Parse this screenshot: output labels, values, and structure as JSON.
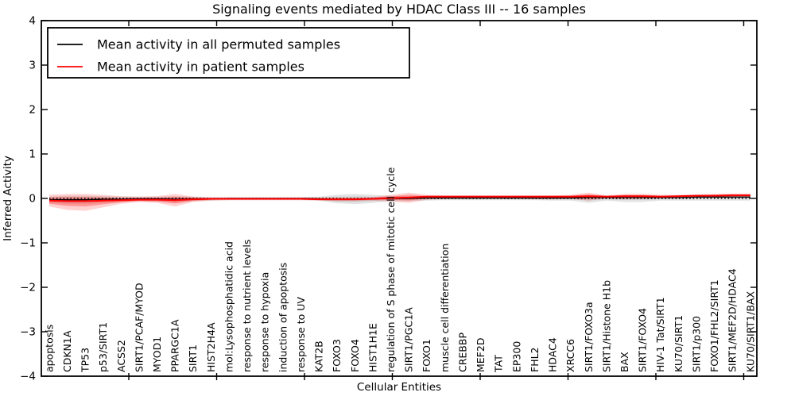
{
  "title": "Signaling events mediated by HDAC Class III -- 16 samples",
  "axes": {
    "xlabel": "Cellular Entities",
    "ylabel": "Inferred Activity"
  },
  "legend": [
    {
      "label": "Mean activity in all permuted samples",
      "color": "#000000"
    },
    {
      "label": "Mean activity in patient samples",
      "color": "#ff0000"
    }
  ],
  "colors": {
    "patient_line": "#ff0000",
    "permuted_line": "#000000",
    "zero_line": "#000000",
    "patient_band": "rgba(255,0,0,0.18)",
    "patient_band_inner": "rgba(255,0,0,0.28)",
    "permuted_band": "rgba(128,128,128,0.22)",
    "permuted_band_inner": "rgba(128,128,128,0.18)",
    "frame": "#000000",
    "background": "#ffffff"
  },
  "chart_data": {
    "type": "line",
    "title": "Signaling events mediated by HDAC Class III -- 16 samples",
    "xlabel": "Cellular Entities",
    "ylabel": "Inferred Activity",
    "ylim": [
      -4,
      4
    ],
    "yticks": [
      -4,
      -3,
      -2,
      -1,
      0,
      1,
      2,
      3,
      4
    ],
    "grid": false,
    "legend_position": "upper left",
    "zero_line": {
      "y": 0,
      "style": "dotted",
      "color": "#000000"
    },
    "categories": [
      "apoptosis",
      "CDKN1A",
      "TP53",
      "p53/SIRT1",
      "ACSS2",
      "SIRT1/PCAF/MYOD",
      "MYOD1",
      "PPARGC1A",
      "SIRT1",
      "HIST2H4A",
      "mol:Lysophosphatidic acid",
      "response to nutrient levels",
      "response to hypoxia",
      "induction of apoptosis",
      "response to UV",
      "KAT2B",
      "FOXO3",
      "FOXO4",
      "HIST1H1E",
      "regulation of S phase of mitotic cell cycle",
      "SIRT1/PGC1A",
      "FOXO1",
      "muscle cell differentiation",
      "CREBBP",
      "MEF2D",
      "TAT",
      "EP300",
      "FHL2",
      "HDAC4",
      "XRCC6",
      "SIRT1/FOXO3a",
      "SIRT1/Histone H1b",
      "BAX",
      "SIRT1/FOXO4",
      "HIV-1 Tat/SIRT1",
      "KU70/SIRT1",
      "SIRT1/p300",
      "FOXO1/FHL2/SIRT1",
      "SIRT1/MEF2D/HDAC4",
      "KU70/SIRT1/BAX"
    ],
    "series": [
      {
        "name": "Mean activity in all permuted samples",
        "color": "#000000",
        "values": [
          -0.03,
          -0.03,
          -0.03,
          -0.02,
          -0.02,
          -0.01,
          -0.01,
          -0.02,
          -0.01,
          -0.01,
          0,
          0,
          0,
          0,
          0,
          -0.01,
          -0.02,
          -0.02,
          -0.01,
          0,
          0,
          0.01,
          0.01,
          0.01,
          0.01,
          0.01,
          0.01,
          0.01,
          0.01,
          0.01,
          0.02,
          0.02,
          0.02,
          0.02,
          0.02,
          0.02,
          0.03,
          0.03,
          0.03,
          0.03
        ],
        "band_upper": [
          0.04,
          0.06,
          0.06,
          0.05,
          0.04,
          0.04,
          0.04,
          0.05,
          0.04,
          0.03,
          0.03,
          0.03,
          0.03,
          0.03,
          0.03,
          0.04,
          0.08,
          0.1,
          0.08,
          0.06,
          0.05,
          0.04,
          0.04,
          0.04,
          0.04,
          0.04,
          0.04,
          0.04,
          0.04,
          0.05,
          0.05,
          0.04,
          0.05,
          0.05,
          0.04,
          0.05,
          0.06,
          0.06,
          0.07,
          0.07
        ],
        "band_lower": [
          -0.1,
          -0.12,
          -0.12,
          -0.1,
          -0.08,
          -0.06,
          -0.07,
          -0.09,
          -0.06,
          -0.05,
          -0.04,
          -0.04,
          -0.04,
          -0.04,
          -0.04,
          -0.05,
          -0.11,
          -0.13,
          -0.1,
          -0.07,
          -0.06,
          -0.05,
          -0.04,
          -0.04,
          -0.04,
          -0.04,
          -0.04,
          -0.04,
          -0.05,
          -0.05,
          -0.1,
          -0.05,
          -0.08,
          -0.08,
          -0.05,
          -0.05,
          -0.05,
          -0.05,
          -0.05,
          -0.05
        ]
      },
      {
        "name": "Mean activity in patient samples",
        "color": "#ff0000",
        "values": [
          -0.05,
          -0.06,
          -0.06,
          -0.05,
          -0.04,
          -0.03,
          -0.03,
          -0.04,
          -0.02,
          -0.01,
          -0.01,
          -0.01,
          -0.01,
          -0.01,
          -0.01,
          -0.02,
          -0.02,
          -0.02,
          -0.01,
          0.01,
          0.02,
          0.04,
          0.04,
          0.04,
          0.04,
          0.04,
          0.04,
          0.04,
          0.04,
          0.04,
          0.05,
          0.04,
          0.05,
          0.05,
          0.04,
          0.05,
          0.06,
          0.06,
          0.07,
          0.07
        ],
        "band_upper": [
          0.08,
          0.1,
          0.1,
          0.08,
          0.05,
          0.04,
          0.05,
          0.1,
          0.04,
          0.02,
          0.02,
          0.02,
          0.02,
          0.02,
          0.02,
          0.02,
          0.02,
          0.02,
          0.03,
          0.08,
          0.13,
          0.08,
          0.07,
          0.07,
          0.07,
          0.07,
          0.07,
          0.07,
          0.07,
          0.08,
          0.13,
          0.07,
          0.1,
          0.1,
          0.08,
          0.08,
          0.09,
          0.1,
          0.11,
          0.11
        ],
        "band_lower": [
          -0.18,
          -0.26,
          -0.28,
          -0.2,
          -0.12,
          -0.08,
          -0.1,
          -0.18,
          -0.08,
          -0.05,
          -0.04,
          -0.04,
          -0.04,
          -0.04,
          -0.04,
          -0.05,
          -0.06,
          -0.06,
          -0.05,
          -0.07,
          -0.1,
          -0.03,
          -0.01,
          -0.01,
          -0.01,
          -0.01,
          -0.01,
          -0.02,
          -0.02,
          -0.01,
          -0.05,
          0.0,
          -0.02,
          -0.01,
          0.01,
          0.01,
          0.02,
          0.03,
          0.03,
          0.03
        ]
      }
    ]
  }
}
